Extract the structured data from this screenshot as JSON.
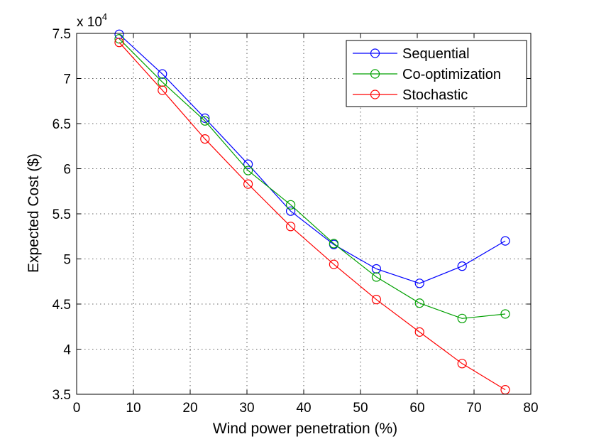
{
  "chart_data": {
    "type": "line",
    "title": "",
    "xlabel": "Wind power penetration (%)",
    "ylabel": "Expected Cost ($)",
    "y_multiplier_base": "x 10",
    "y_multiplier_exp": "4",
    "xlim": [
      0,
      80
    ],
    "ylim": [
      3.5,
      7.5
    ],
    "xticks": [
      0,
      10,
      20,
      30,
      40,
      50,
      60,
      70,
      80
    ],
    "yticks": [
      3.5,
      4,
      4.5,
      5,
      5.5,
      6,
      6.5,
      7,
      7.5
    ],
    "xtick_labels": [
      "0",
      "10",
      "20",
      "30",
      "40",
      "50",
      "60",
      "70",
      "80"
    ],
    "ytick_labels": [
      "3.5",
      "4",
      "4.5",
      "5",
      "5.5",
      "6",
      "6.5",
      "7",
      "7.5"
    ],
    "grid": true,
    "legend_position": "top-right",
    "marker": "circle",
    "x": [
      7.5,
      15.1,
      22.6,
      30.2,
      37.7,
      45.3,
      52.8,
      60.4,
      67.9,
      75.5
    ],
    "series": [
      {
        "name": "Sequential",
        "color": "#0000ff",
        "values": [
          7.49,
          7.05,
          6.56,
          6.05,
          5.53,
          5.16,
          4.89,
          4.73,
          4.92,
          5.2
        ]
      },
      {
        "name": "Co-optimization",
        "color": "#00a000",
        "values": [
          7.44,
          6.96,
          6.53,
          5.98,
          5.6,
          5.17,
          4.8,
          4.51,
          4.34,
          4.39
        ]
      },
      {
        "name": "Stochastic",
        "color": "#ff0000",
        "values": [
          7.4,
          6.87,
          6.33,
          5.83,
          5.36,
          4.94,
          4.55,
          4.19,
          3.84,
          3.55
        ]
      }
    ]
  }
}
